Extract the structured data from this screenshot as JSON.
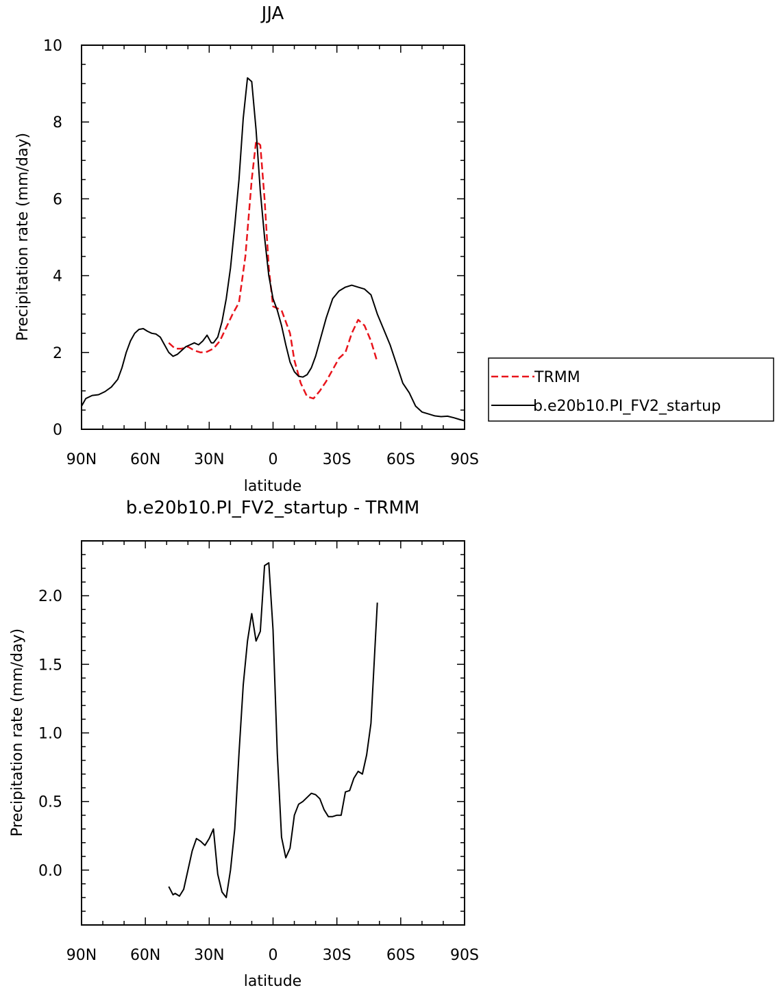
{
  "chart_data": [
    {
      "type": "line",
      "title": "JJA",
      "xlabel": "latitude",
      "ylabel": "Precipitation rate (mm/day)",
      "xlim": [
        90,
        -90
      ],
      "ylim": [
        0,
        10
      ],
      "x_ticks": [
        {
          "value": 90,
          "label": "90N"
        },
        {
          "value": 60,
          "label": "60N"
        },
        {
          "value": 30,
          "label": "30N"
        },
        {
          "value": 0,
          "label": "0"
        },
        {
          "value": -30,
          "label": "30S"
        },
        {
          "value": -60,
          "label": "60S"
        },
        {
          "value": -90,
          "label": "90S"
        }
      ],
      "y_ticks": [
        {
          "value": 0,
          "label": "0"
        },
        {
          "value": 2,
          "label": "2"
        },
        {
          "value": 4,
          "label": "4"
        },
        {
          "value": 6,
          "label": "6"
        },
        {
          "value": 8,
          "label": "8"
        },
        {
          "value": 10,
          "label": "10"
        }
      ],
      "legend_position": "right",
      "series": [
        {
          "name": "TRMM",
          "color": "#e8141b",
          "dash": "dashed",
          "x": [
            49,
            46,
            43,
            40,
            37,
            34,
            31,
            28,
            25,
            22,
            19,
            16,
            13,
            10,
            8,
            6,
            4,
            2,
            0,
            -2,
            -4,
            -6,
            -8,
            -10,
            -13,
            -16,
            -19,
            -22,
            -25,
            -28,
            -31,
            -34,
            -37,
            -40,
            -43,
            -46,
            -49
          ],
          "y": [
            2.25,
            2.1,
            2.1,
            2.15,
            2.05,
            2.0,
            2.02,
            2.1,
            2.3,
            2.65,
            3.0,
            3.3,
            4.5,
            6.5,
            7.5,
            7.4,
            6.0,
            4.2,
            3.2,
            3.15,
            3.1,
            2.8,
            2.5,
            1.8,
            1.2,
            0.85,
            0.8,
            1.0,
            1.25,
            1.55,
            1.85,
            2.0,
            2.5,
            2.85,
            2.7,
            2.3,
            1.75
          ]
        },
        {
          "name": "b.e20b10.PI_FV2_startup",
          "color": "#000000",
          "dash": "solid",
          "x": [
            90,
            88,
            85,
            82,
            79,
            76,
            73,
            71,
            69,
            67,
            65,
            63,
            61,
            59,
            57,
            55,
            53,
            51,
            49,
            47,
            45,
            43,
            41,
            39,
            37,
            35,
            33,
            31,
            29,
            28,
            26,
            24,
            22,
            20,
            18,
            16,
            14,
            12,
            10,
            8,
            6,
            4,
            2,
            0,
            -2,
            -4,
            -6,
            -8,
            -10,
            -12,
            -14,
            -16,
            -18,
            -20,
            -22,
            -25,
            -28,
            -31,
            -34,
            -37,
            -40,
            -43,
            -46,
            -49,
            -52,
            -55,
            -58,
            -61,
            -64,
            -67,
            -70,
            -73,
            -76,
            -79,
            -82,
            -85,
            -88,
            -90
          ],
          "y": [
            0.6,
            0.8,
            0.88,
            0.9,
            0.98,
            1.1,
            1.3,
            1.6,
            2.0,
            2.3,
            2.5,
            2.6,
            2.62,
            2.55,
            2.5,
            2.48,
            2.4,
            2.2,
            2.0,
            1.9,
            1.95,
            2.05,
            2.15,
            2.2,
            2.25,
            2.2,
            2.3,
            2.45,
            2.25,
            2.25,
            2.4,
            2.8,
            3.4,
            4.2,
            5.3,
            6.5,
            8.1,
            9.15,
            9.05,
            7.8,
            6.2,
            5.0,
            4.0,
            3.4,
            3.1,
            2.7,
            2.2,
            1.75,
            1.5,
            1.38,
            1.36,
            1.42,
            1.6,
            1.9,
            2.3,
            2.9,
            3.4,
            3.6,
            3.7,
            3.75,
            3.7,
            3.65,
            3.5,
            3.0,
            2.6,
            2.2,
            1.7,
            1.2,
            0.95,
            0.6,
            0.45,
            0.4,
            0.35,
            0.33,
            0.34,
            0.3,
            0.25,
            0.22
          ]
        }
      ]
    },
    {
      "type": "line",
      "title": "b.e20b10.PI_FV2_startup - TRMM",
      "xlabel": "latitude",
      "ylabel": "Precipitation rate (mm/day)",
      "xlim": [
        90,
        -90
      ],
      "ylim": [
        -0.4,
        2.4
      ],
      "x_ticks": [
        {
          "value": 90,
          "label": "90N"
        },
        {
          "value": 60,
          "label": "60N"
        },
        {
          "value": 30,
          "label": "30N"
        },
        {
          "value": 0,
          "label": "0"
        },
        {
          "value": -30,
          "label": "30S"
        },
        {
          "value": -60,
          "label": "60S"
        },
        {
          "value": -90,
          "label": "90S"
        }
      ],
      "y_ticks": [
        {
          "value": 0.0,
          "label": "0.0"
        },
        {
          "value": 0.5,
          "label": "0.5"
        },
        {
          "value": 1.0,
          "label": "1.0"
        },
        {
          "value": 1.5,
          "label": "1.5"
        },
        {
          "value": 2.0,
          "label": "2.0"
        }
      ],
      "series": [
        {
          "color": "#000000",
          "dash": "solid",
          "x": [
            49,
            47,
            46,
            44,
            42,
            40,
            38,
            36,
            34,
            32,
            30,
            28,
            26,
            24,
            22,
            20,
            18,
            16,
            14,
            12,
            10,
            8,
            6,
            4,
            2,
            0,
            -2,
            -4,
            -6,
            -8,
            -10,
            -12,
            -14,
            -16,
            -18,
            -20,
            -22,
            -24,
            -26,
            -28,
            -30,
            -32,
            -34,
            -36,
            -38,
            -40,
            -42,
            -44,
            -46,
            -49
          ],
          "y": [
            -0.12,
            -0.18,
            -0.17,
            -0.19,
            -0.14,
            0.0,
            0.14,
            0.23,
            0.21,
            0.18,
            0.23,
            0.3,
            -0.03,
            -0.16,
            -0.2,
            0.0,
            0.3,
            0.85,
            1.35,
            1.67,
            1.87,
            1.67,
            1.74,
            2.22,
            2.24,
            1.75,
            0.85,
            0.24,
            0.09,
            0.16,
            0.4,
            0.48,
            0.5,
            0.53,
            0.56,
            0.55,
            0.52,
            0.44,
            0.39,
            0.39,
            0.4,
            0.4,
            0.57,
            0.58,
            0.67,
            0.72,
            0.7,
            0.84,
            1.07,
            1.95
          ]
        }
      ]
    }
  ]
}
